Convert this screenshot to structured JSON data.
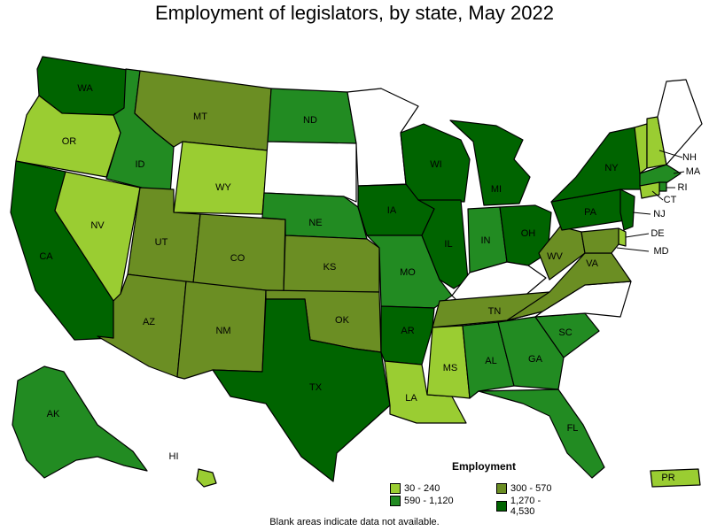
{
  "title": "Employment of legislators, by state, May 2022",
  "colors": {
    "c1": "#9acd32",
    "c2": "#6b8e23",
    "c3": "#228b22",
    "c4": "#006400",
    "none": "#ffffff"
  },
  "legend": {
    "title": "Employment",
    "items": [
      {
        "label": "30 - 240",
        "color": "#9acd32"
      },
      {
        "label": "300 - 570",
        "color": "#6b8e23"
      },
      {
        "label": "590 - 1,120",
        "color": "#228b22"
      },
      {
        "label": "1,270 - 4,530",
        "color": "#006400"
      }
    ]
  },
  "note": "Blank areas indicate data not available.",
  "states": {
    "WA": "c4",
    "OR": "c1",
    "CA": "c4",
    "NV": "c1",
    "ID": "c3",
    "MT": "c2",
    "WY": "c1",
    "UT": "c2",
    "CO": "c2",
    "AZ": "c2",
    "NM": "c2",
    "ND": "c3",
    "SD": "none",
    "NE": "c3",
    "KS": "c2",
    "OK": "c2",
    "TX": "c4",
    "MN": "none",
    "IA": "c4",
    "MO": "c3",
    "AR": "c4",
    "LA": "c1",
    "WI": "c4",
    "IL": "c4",
    "MI": "c4",
    "IN": "c3",
    "OH": "c4",
    "KY": "none",
    "TN": "c2",
    "MS": "c1",
    "AL": "c3",
    "GA": "c3",
    "FL": "c3",
    "SC": "c3",
    "NC": "none",
    "VA": "c2",
    "WV": "c2",
    "PA": "c4",
    "NY": "c4",
    "VT": "c1",
    "NH": "c1",
    "ME": "none",
    "MA": "c3",
    "RI": "c3",
    "CT": "c1",
    "NJ": "c4",
    "DE": "c1",
    "MD": "c2",
    "AK": "c3",
    "HI": "c1",
    "PR": "c1"
  },
  "labels": {
    "WA": "WA",
    "OR": "OR",
    "CA": "CA",
    "NV": "NV",
    "ID": "ID",
    "MT": "MT",
    "WY": "WY",
    "UT": "UT",
    "CO": "CO",
    "AZ": "AZ",
    "NM": "NM",
    "ND": "ND",
    "NE": "NE",
    "KS": "KS",
    "OK": "OK",
    "TX": "TX",
    "IA": "IA",
    "MO": "MO",
    "AR": "AR",
    "LA": "LA",
    "WI": "WI",
    "IL": "IL",
    "MI": "MI",
    "IN": "IN",
    "OH": "OH",
    "TN": "TN",
    "MS": "MS",
    "AL": "AL",
    "GA": "GA",
    "FL": "FL",
    "SC": "SC",
    "VA": "VA",
    "WV": "WV",
    "PA": "PA",
    "NY": "NY",
    "NH": "NH",
    "MA": "MA",
    "RI": "RI",
    "CT": "CT",
    "NJ": "NJ",
    "DE": "DE",
    "MD": "MD",
    "AK": "AK",
    "HI": "HI",
    "PR": "PR"
  }
}
